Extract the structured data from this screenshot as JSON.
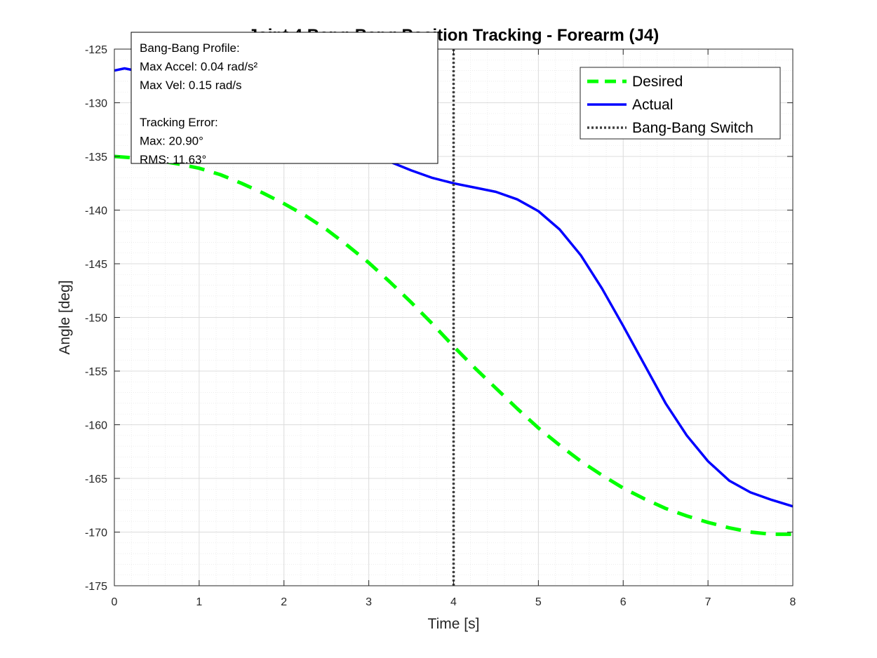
{
  "chart_data": {
    "type": "line",
    "title": "Joint 4 Bang-Bang Position Tracking - Forearm (J4)",
    "xlabel": "Time [s]",
    "ylabel": "Angle [deg]",
    "xlim": [
      0,
      8
    ],
    "ylim": [
      -175,
      -125
    ],
    "xticks": [
      0,
      1,
      2,
      3,
      4,
      5,
      6,
      7,
      8
    ],
    "yticks": [
      -125,
      -130,
      -135,
      -140,
      -145,
      -150,
      -155,
      -160,
      -165,
      -170,
      -175
    ],
    "grid": true,
    "minor_grid": true,
    "legend_position": "top-right",
    "series": [
      {
        "name": "Desired",
        "style": "dashed",
        "color": "#00ff00",
        "x": [
          0,
          0.25,
          0.5,
          0.75,
          1.0,
          1.25,
          1.5,
          1.75,
          2.0,
          2.25,
          2.5,
          2.75,
          3.0,
          3.25,
          3.5,
          3.75,
          4.0,
          4.25,
          4.5,
          4.75,
          5.0,
          5.25,
          5.5,
          5.75,
          6.0,
          6.25,
          6.5,
          6.75,
          7.0,
          7.25,
          7.5,
          7.75,
          8.0
        ],
        "y": [
          -135.0,
          -135.15,
          -135.35,
          -135.7,
          -136.1,
          -136.7,
          -137.5,
          -138.4,
          -139.4,
          -140.5,
          -141.8,
          -143.3,
          -144.9,
          -146.7,
          -148.6,
          -150.6,
          -152.7,
          -154.7,
          -156.6,
          -158.5,
          -160.3,
          -161.9,
          -163.4,
          -164.7,
          -165.9,
          -166.9,
          -167.8,
          -168.5,
          -169.1,
          -169.6,
          -170.0,
          -170.2,
          -170.2
        ]
      },
      {
        "name": "Actual",
        "style": "solid",
        "color": "#0000ff",
        "x": [
          0,
          0.12,
          0.25,
          0.5,
          0.75,
          1.0,
          1.5,
          2.0,
          2.5,
          3.0,
          3.25,
          3.5,
          3.75,
          4.0,
          4.25,
          4.5,
          4.75,
          5.0,
          5.25,
          5.5,
          5.75,
          6.0,
          6.25,
          6.5,
          6.75,
          7.0,
          7.25,
          7.5,
          7.75,
          8.0
        ],
        "y": [
          -127.0,
          -126.8,
          -127.0,
          -128.0,
          -129.5,
          -131.0,
          -133.0,
          -134.2,
          -134.6,
          -134.8,
          -135.5,
          -136.3,
          -137.0,
          -137.5,
          -137.9,
          -138.3,
          -139.0,
          -140.1,
          -141.8,
          -144.2,
          -147.3,
          -150.8,
          -154.4,
          -158.0,
          -161.0,
          -163.4,
          -165.2,
          -166.3,
          -167.0,
          -167.6
        ]
      },
      {
        "name": "Bang-Bang Switch",
        "style": "dotted",
        "color": "#404040",
        "x": [
          4,
          4
        ],
        "y": [
          -175,
          -125
        ]
      }
    ],
    "annotation": {
      "lines": [
        "Bang-Bang Profile:",
        "Max Accel: 0.04 rad/s²",
        "Max Vel: 0.15 rad/s",
        "",
        "Tracking Error:",
        "Max: 20.90°",
        "RMS: 11.63°"
      ]
    }
  }
}
